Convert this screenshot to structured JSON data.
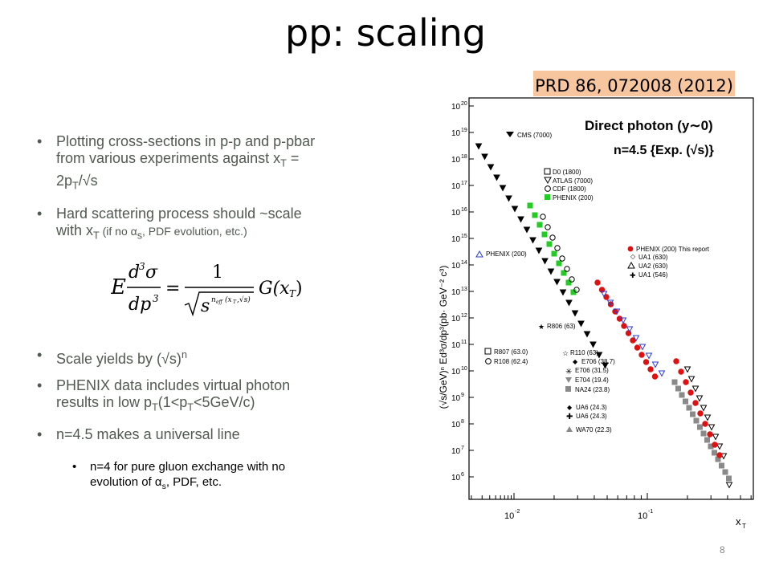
{
  "slide": {
    "title": "pp: scaling",
    "reference": "PRD 86, 072008 (2012)",
    "page_number": "8"
  },
  "bullets": {
    "b1": {
      "dot": "•",
      "l1": "Plotting cross-sections in p-p and p-pbar",
      "l2a": "from various experiments against x",
      "l2sub": "T",
      "l2b": " =",
      "l3a": "2p",
      "l3sub": "T",
      "l3b": "/√s"
    },
    "b2": {
      "dot": "•",
      "l1": "Hard scattering process should ~scale",
      "l2a": "with x",
      "l2sub": "T",
      "l2b": " (if no α",
      "l2sub2": "s",
      "l2c": ", PDF evolution, etc.)"
    },
    "b3": {
      "dot": "•",
      "a": "Scale yields by (√s)",
      "sup": "n"
    },
    "b4": {
      "dot": "•",
      "l1": "PHENIX data includes virtual photon",
      "l2a": "results in low p",
      "l2sub": "T",
      "l2b": "(1<p",
      "l2sub2": "T",
      "l2c": "<5GeV/c)"
    },
    "b5": {
      "dot": "•",
      "text": "n=4.5 makes a universal line"
    },
    "sub": {
      "dot": "•",
      "l1": "n=4 for pure gluon exchange with no",
      "l2a": "evolution of α",
      "l2sub": "s",
      "l2b": ", PDF, etc."
    }
  },
  "equation": {
    "E": "E",
    "num_d3": "d",
    "num_exp": "3",
    "num_sigma": "σ",
    "den_d": "dp",
    "den_exp": "3",
    "eq": "=",
    "one": "1",
    "sqrt_s": "s",
    "n_eff": "n",
    "n_eff_sub": "eff",
    "n_eff_args": "(x",
    "n_eff_args_sub": "T",
    "n_eff_args2": ",√s)",
    "G": "G(x",
    "G_sub": "T",
    "G_close": ")"
  },
  "plot": {
    "header1": "Direct photon (y∼0)",
    "header2": "n=4.5 {Exp. (√s)}",
    "ylabel": "(√s/GeV)ⁿ Ed³σ/dp³(pb· GeV⁻² c³)",
    "xlabel": "x",
    "xlabel_sub": "T",
    "y_ticks": [
      "10",
      "10",
      "10",
      "10",
      "10",
      "10",
      "10",
      "10",
      "10",
      "10",
      "10",
      "10",
      "10",
      "10",
      "10"
    ],
    "y_tick_exps": [
      "20",
      "19",
      "18",
      "17",
      "16",
      "15",
      "14",
      "13",
      "12",
      "11",
      "10",
      "9",
      "8",
      "7",
      "6"
    ],
    "x_ticks": [
      "10",
      "10"
    ],
    "x_tick_exps": [
      "-2",
      "-1"
    ],
    "legend": {
      "cms": "CMS (7000)",
      "d0": "D0 (1800)",
      "atlas": "ATLAS (7000)",
      "cdf": "CDF (1800)",
      "phenix200": "PHENIX (200)",
      "phenix_left": "PHENIX (200)",
      "phenix_this": "PHENIX (200) This report",
      "ua1_630": "UA1 (630)",
      "ua2_630": "UA2 (630)",
      "ua1_546": "UA1 (546)",
      "r806": "R806 (63)",
      "r807": "R807 (63.0)",
      "r108": "R108 (62.4)",
      "r110": "R110 (63)",
      "e706_387": "E706 (38.7)",
      "e706_315": "E706 (31.5)",
      "e704": "E704 (19.4)",
      "na24": "NA24 (23.8)",
      "ua6_243a": "UA6 (24.3)",
      "ua6_243b": "UA6 (24.3)",
      "wa70": "WA70 (22.3)"
    },
    "colors": {
      "phenix_red": "#e01010",
      "phenix_green": "#22cc22",
      "blue": "#2a3ad0",
      "black": "#000000",
      "gray": "#8a8a8a"
    }
  }
}
